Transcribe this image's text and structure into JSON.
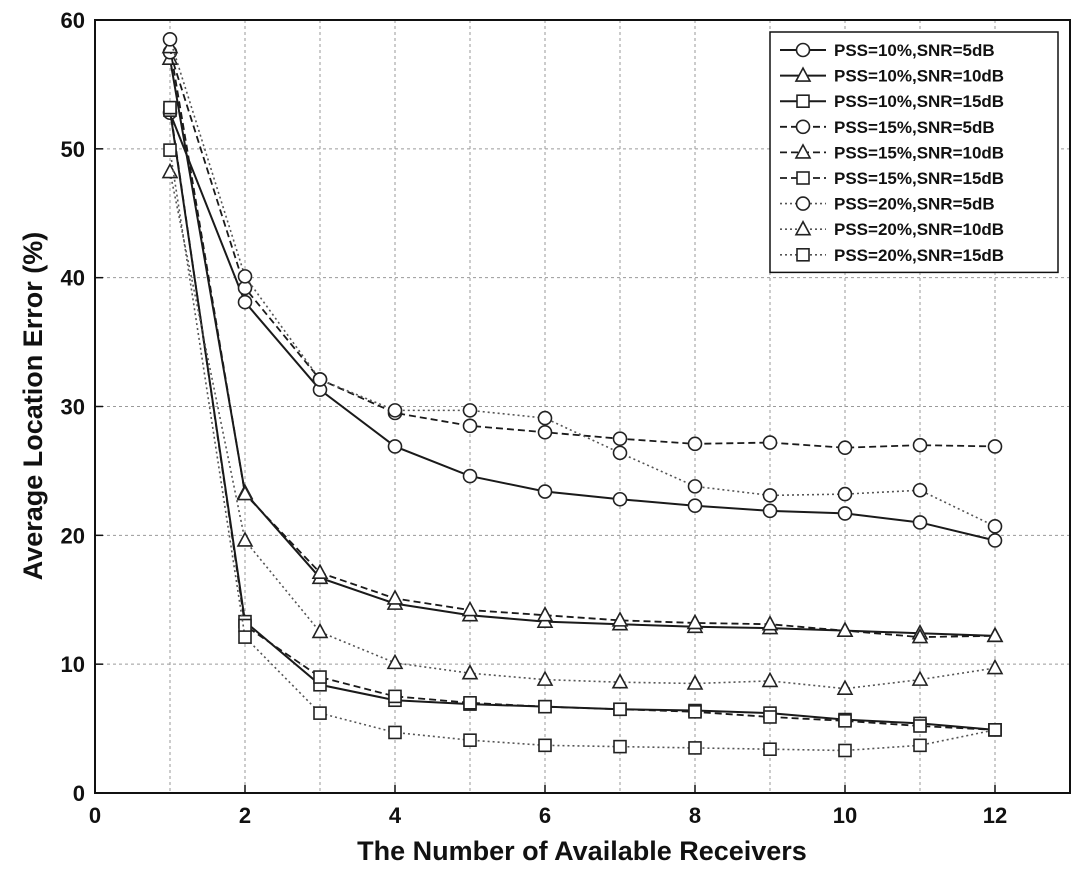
{
  "chart_data": {
    "type": "line",
    "title": "",
    "xlabel": "The Number of Available Receivers",
    "ylabel": "Average Location Error (%)",
    "xlim": [
      0,
      13
    ],
    "ylim": [
      0,
      60
    ],
    "xticks": [
      0,
      2,
      4,
      6,
      8,
      10,
      12
    ],
    "yticks": [
      0,
      10,
      20,
      30,
      40,
      50,
      60
    ],
    "xgrid": [
      1,
      2,
      3,
      4,
      5,
      6,
      7,
      8,
      9,
      10,
      11,
      12
    ],
    "grid": true,
    "legend_position": "top-right",
    "x": [
      1,
      2,
      3,
      4,
      5,
      6,
      7,
      8,
      9,
      10,
      11,
      12
    ],
    "series": [
      {
        "name": "PSS=10%,SNR=5dB",
        "marker": "circle",
        "style": "solid",
        "values": [
          52.8,
          38.1,
          31.3,
          26.9,
          24.6,
          23.4,
          22.8,
          22.3,
          21.9,
          21.7,
          21.0,
          19.6
        ]
      },
      {
        "name": "PSS=10%,SNR=10dB",
        "marker": "triangle",
        "style": "solid",
        "values": [
          57.0,
          23.3,
          16.7,
          14.7,
          13.8,
          13.3,
          13.1,
          12.9,
          12.8,
          12.6,
          12.4,
          12.2
        ]
      },
      {
        "name": "PSS=10%,SNR=15dB",
        "marker": "square",
        "style": "solid",
        "values": [
          53.0,
          13.3,
          8.4,
          7.2,
          6.9,
          6.7,
          6.5,
          6.4,
          6.2,
          5.7,
          5.4,
          4.9
        ]
      },
      {
        "name": "PSS=15%,SNR=5dB",
        "marker": "circle",
        "style": "dashed",
        "values": [
          57.5,
          39.2,
          32.1,
          29.5,
          28.5,
          28.0,
          27.5,
          27.1,
          27.2,
          26.8,
          27.0,
          26.9
        ]
      },
      {
        "name": "PSS=15%,SNR=10dB",
        "marker": "triangle",
        "style": "dashed",
        "values": [
          57.9,
          23.2,
          17.1,
          15.1,
          14.2,
          13.8,
          13.4,
          13.2,
          13.1,
          12.6,
          12.1,
          12.2
        ]
      },
      {
        "name": "PSS=15%,SNR=15dB",
        "marker": "square",
        "style": "dashed",
        "values": [
          53.2,
          13.0,
          9.0,
          7.5,
          7.0,
          6.7,
          6.5,
          6.3,
          5.9,
          5.6,
          5.2,
          4.9
        ]
      },
      {
        "name": "PSS=20%,SNR=5dB",
        "marker": "circle",
        "style": "dotted",
        "values": [
          58.5,
          40.1,
          32.1,
          29.7,
          29.7,
          29.1,
          26.4,
          23.8,
          23.1,
          23.2,
          23.5,
          20.7
        ]
      },
      {
        "name": "PSS=20%,SNR=10dB",
        "marker": "triangle",
        "style": "dotted",
        "values": [
          48.2,
          19.6,
          12.5,
          10.1,
          9.3,
          8.8,
          8.6,
          8.5,
          8.7,
          8.1,
          8.8,
          9.7
        ]
      },
      {
        "name": "PSS=20%,SNR=15dB",
        "marker": "square",
        "style": "dotted",
        "values": [
          49.9,
          12.1,
          6.2,
          4.7,
          4.1,
          3.7,
          3.6,
          3.5,
          3.4,
          3.3,
          3.7,
          4.9
        ]
      }
    ]
  }
}
